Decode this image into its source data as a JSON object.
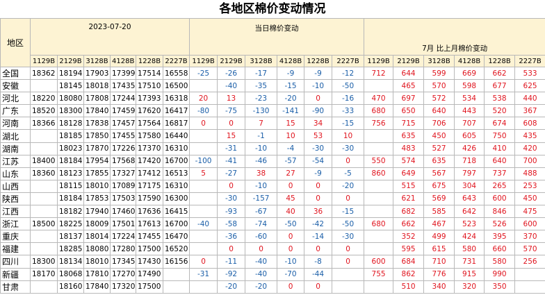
{
  "title": "各地区棉价变动情况",
  "table": {
    "region_header": "地区",
    "groups": [
      "2023-07-20",
      "当日棉价变动",
      "7月 比上月棉价变动"
    ],
    "columns": [
      "1129B",
      "2129B",
      "3128B",
      "4128B",
      "1228B",
      "2227B"
    ],
    "rows": [
      [
        "全国",
        18362,
        18194,
        17903,
        17399,
        17514,
        16558,
        -25,
        -26,
        -17,
        -9,
        -9,
        -12,
        712,
        644,
        599,
        669,
        662,
        533
      ],
      [
        "安徽",
        null,
        18145,
        18018,
        17435,
        17510,
        16500,
        null,
        -40,
        -35,
        -15,
        -10,
        -50,
        null,
        465,
        570,
        598,
        677,
        625
      ],
      [
        "河北",
        18220,
        18080,
        17808,
        17244,
        17393,
        16318,
        20,
        13,
        -23,
        -20,
        0,
        -16,
        470,
        697,
        572,
        534,
        538,
        440
      ],
      [
        "广东",
        18520,
        18300,
        17840,
        17459,
        17620,
        16417,
        -80,
        -75,
        -130,
        -141,
        -90,
        -33,
        680,
        650,
        640,
        443,
        520,
        367
      ],
      [
        "河南",
        18366,
        18128,
        17838,
        17457,
        17564,
        16817,
        0,
        0,
        7,
        15,
        34,
        -15,
        756,
        715,
        706,
        707,
        674,
        608
      ],
      [
        "湖北",
        null,
        18185,
        17850,
        17455,
        17580,
        16440,
        null,
        15,
        -1,
        10,
        53,
        10,
        null,
        635,
        450,
        605,
        750,
        435
      ],
      [
        "湖南",
        null,
        18023,
        17870,
        17226,
        17370,
        16310,
        null,
        -31,
        -10,
        -4,
        -30,
        -30,
        null,
        483,
        527,
        426,
        410,
        420
      ],
      [
        "江苏",
        18400,
        18184,
        17954,
        17568,
        17420,
        16700,
        -100,
        -41,
        -46,
        -57,
        -54,
        0,
        550,
        574,
        635,
        718,
        640,
        700
      ],
      [
        "山东",
        18360,
        18123,
        17855,
        17327,
        17412,
        16513,
        5,
        -27,
        38,
        27,
        -9,
        -5,
        860,
        649,
        567,
        797,
        737,
        488
      ],
      [
        "山西",
        null,
        18115,
        18010,
        17089,
        17175,
        16310,
        null,
        0,
        -10,
        0,
        0,
        -20,
        null,
        515,
        675,
        304,
        265,
        253
      ],
      [
        "陕西",
        null,
        18184,
        17853,
        17503,
        17590,
        16300,
        null,
        -30,
        -157,
        45,
        0,
        0,
        null,
        621,
        569,
        643,
        600,
        450
      ],
      [
        "江西",
        null,
        18182,
        17940,
        17460,
        17636,
        16415,
        null,
        -93,
        -67,
        40,
        36,
        -15,
        null,
        682,
        585,
        642,
        846,
        475
      ],
      [
        "浙江",
        18500,
        18225,
        18009,
        17501,
        17613,
        16700,
        -40,
        -58,
        -74,
        -50,
        -42,
        -50,
        680,
        662,
        467,
        523,
        526,
        600
      ],
      [
        "重庆",
        null,
        18137,
        18014,
        17224,
        17455,
        16470,
        null,
        -36,
        -60,
        0,
        -14,
        -30,
        null,
        352,
        499,
        424,
        395,
        370
      ],
      [
        "福建",
        null,
        18285,
        18080,
        17280,
        17500,
        16520,
        null,
        0,
        0,
        0,
        0,
        0,
        null,
        595,
        615,
        580,
        660,
        570
      ],
      [
        "四川",
        18300,
        18134,
        18010,
        17345,
        17430,
        16156,
        0,
        -11,
        -40,
        -10,
        -8,
        0,
        600,
        684,
        710,
        731,
        580,
        256
      ],
      [
        "新疆",
        18170,
        18068,
        17810,
        17270,
        17490,
        null,
        -31,
        -92,
        -40,
        -70,
        -44,
        null,
        755,
        862,
        776,
        915,
        990,
        null
      ],
      [
        "甘肃",
        null,
        18160,
        17840,
        17320,
        17500,
        null,
        null,
        -20,
        -20,
        0,
        0,
        null,
        null,
        510,
        340,
        320,
        350,
        null
      ]
    ]
  }
}
